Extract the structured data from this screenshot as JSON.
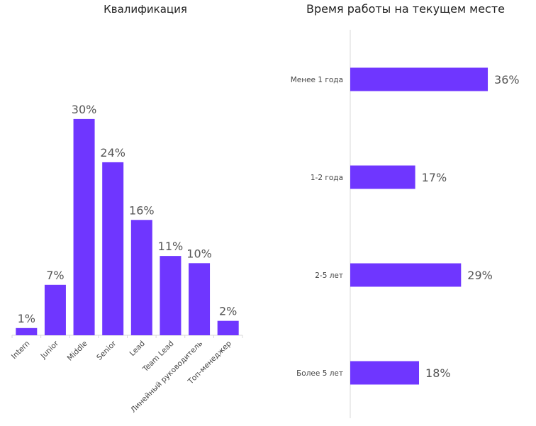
{
  "chart_data": [
    {
      "type": "bar",
      "title": "Квалификация",
      "categories": [
        "Intern",
        "Junior",
        "Middle",
        "Senior",
        "Lead",
        "Team Lead",
        "Линейный руководитель",
        "Топ-менеджер"
      ],
      "values": [
        1,
        7,
        30,
        24,
        16,
        11,
        10,
        2
      ],
      "data_labels": [
        "1%",
        "7%",
        "30%",
        "24%",
        "16%",
        "11%",
        "10%",
        "2%"
      ],
      "unit": "%",
      "xlabel": "",
      "ylabel": "",
      "grid": false,
      "color": "#6f36ff"
    },
    {
      "type": "bar",
      "orientation": "horizontal",
      "title": "Время работы на текущем месте",
      "categories": [
        "Менее 1 года",
        "1-2 года",
        "2-5 лет",
        "Более 5 лет"
      ],
      "values": [
        36,
        17,
        29,
        18
      ],
      "data_labels": [
        "36%",
        "17%",
        "29%",
        "18%"
      ],
      "unit": "%",
      "xlabel": "",
      "ylabel": "",
      "grid": false,
      "color": "#6f36ff"
    }
  ]
}
